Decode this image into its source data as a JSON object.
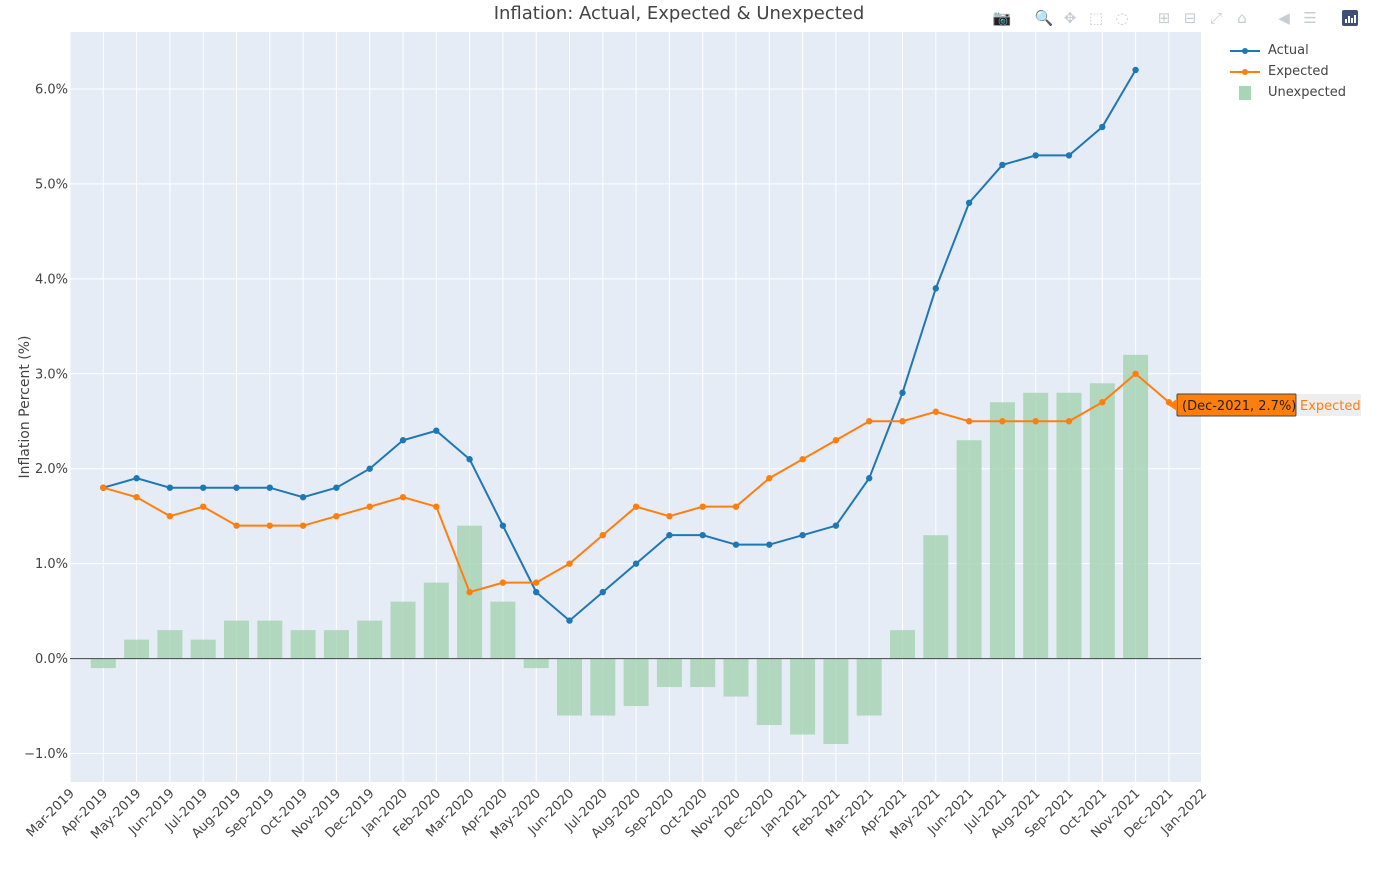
{
  "chart_data": {
    "type": "line",
    "title": "Inflation: Actual, Expected & Unexpected",
    "xlabel": "",
    "ylabel": "Inflation Percent (%)",
    "ylim": [
      -1.3,
      6.6
    ],
    "x_tick_labels": [
      "Mar-2019",
      "Apr-2019",
      "May-2019",
      "Jun-2019",
      "Jul-2019",
      "Aug-2019",
      "Sep-2019",
      "Oct-2019",
      "Nov-2019",
      "Dec-2019",
      "Jan-2020",
      "Feb-2020",
      "Mar-2020",
      "Apr-2020",
      "May-2020",
      "Jun-2020",
      "Jul-2020",
      "Aug-2020",
      "Sep-2020",
      "Oct-2020",
      "Nov-2020",
      "Dec-2020",
      "Jan-2021",
      "Feb-2021",
      "Mar-2021",
      "Apr-2021",
      "May-2021",
      "Jun-2021",
      "Jul-2021",
      "Aug-2021",
      "Sep-2021",
      "Oct-2021",
      "Nov-2021",
      "Dec-2021",
      "Jan-2022"
    ],
    "y_ticks": [
      -1,
      0,
      1,
      2,
      3,
      4,
      5,
      6
    ],
    "y_tick_labels": [
      "−1.0%",
      "0.0%",
      "1.0%",
      "2.0%",
      "3.0%",
      "4.0%",
      "5.0%",
      "6.0%"
    ],
    "categories": [
      "Apr-2019",
      "May-2019",
      "Jun-2019",
      "Jul-2019",
      "Aug-2019",
      "Sep-2019",
      "Oct-2019",
      "Nov-2019",
      "Dec-2019",
      "Jan-2020",
      "Feb-2020",
      "Mar-2020",
      "Apr-2020",
      "May-2020",
      "Jun-2020",
      "Jul-2020",
      "Aug-2020",
      "Sep-2020",
      "Oct-2020",
      "Nov-2020",
      "Dec-2020",
      "Jan-2021",
      "Feb-2021",
      "Mar-2021",
      "Apr-2021",
      "May-2021",
      "Jun-2021",
      "Jul-2021",
      "Aug-2021",
      "Sep-2021",
      "Oct-2021",
      "Nov-2021",
      "Dec-2021"
    ],
    "series": [
      {
        "name": "Actual",
        "kind": "line",
        "color": "#1f77b4",
        "values": [
          1.8,
          1.9,
          1.8,
          1.8,
          1.8,
          1.8,
          1.7,
          1.8,
          2.0,
          2.3,
          2.4,
          2.1,
          1.4,
          0.7,
          0.4,
          0.7,
          1.0,
          1.3,
          1.3,
          1.2,
          1.2,
          1.3,
          1.4,
          1.9,
          2.8,
          3.9,
          4.8,
          5.2,
          5.3,
          5.3,
          5.6,
          6.2,
          null
        ]
      },
      {
        "name": "Expected",
        "kind": "line",
        "color": "#ff7f0e",
        "values": [
          1.8,
          1.7,
          1.5,
          1.6,
          1.4,
          1.4,
          1.4,
          1.5,
          1.6,
          1.7,
          1.6,
          0.7,
          0.8,
          0.8,
          1.0,
          1.3,
          1.6,
          1.5,
          1.6,
          1.6,
          1.9,
          2.1,
          2.3,
          2.5,
          2.5,
          2.6,
          2.5,
          2.5,
          2.5,
          2.5,
          2.7,
          3.0,
          2.7
        ]
      },
      {
        "name": "Unexpected",
        "kind": "bar",
        "color": "#a8d5b5",
        "values": [
          -0.1,
          0.2,
          0.3,
          0.2,
          0.4,
          0.4,
          0.3,
          0.3,
          0.4,
          0.6,
          0.8,
          1.4,
          0.6,
          -0.1,
          -0.6,
          -0.6,
          -0.5,
          -0.3,
          -0.3,
          -0.4,
          -0.7,
          -0.8,
          -0.9,
          -0.6,
          0.3,
          1.3,
          2.3,
          2.7,
          2.8,
          2.8,
          2.9,
          3.2,
          null
        ]
      }
    ],
    "grid": true,
    "legend_position": "top-right",
    "hover_label": {
      "text": "(Dec-2021, 2.7%)",
      "series": "Expected",
      "category_index": 32,
      "value": 2.7
    }
  },
  "colors": {
    "plot_bg": "#e5ecf6",
    "grid": "#ffffff",
    "actual": "#1f77b4",
    "expected": "#ff7f0e",
    "unexpected": "#a8d5b5",
    "hover_bg": "#ff7f0e"
  },
  "modebar": {
    "buttons": [
      "camera-icon",
      "zoom-icon",
      "pan-icon",
      "box-select-icon",
      "lasso-icon",
      "zoom-in-icon",
      "zoom-out-icon",
      "autoscale-icon",
      "reset-axes-icon",
      "spike-lines-icon",
      "compare-hover-icon",
      "plotly-logo"
    ]
  }
}
